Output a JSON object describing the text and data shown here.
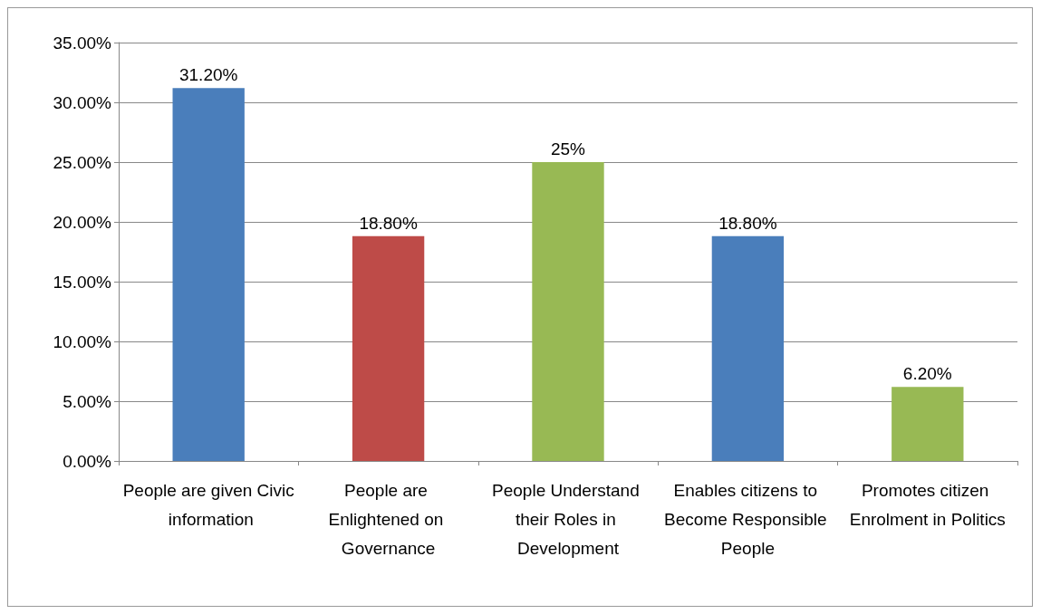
{
  "chart_data": {
    "type": "bar",
    "categories": [
      "People are given Civic information",
      "People are Enlightened on Governance",
      "People Understand their Roles in Development",
      "Enables citizens to Become Responsible People",
      "Promotes citizen Enrolment in Politics"
    ],
    "values": [
      31.2,
      18.8,
      25,
      18.8,
      6.2
    ],
    "colors": [
      "#4a7ebb",
      "#be4b48",
      "#98b954",
      "#4a7ebb",
      "#98b954"
    ],
    "value_labels": [
      "31.20%",
      "18.80%",
      "25%",
      "18.80%",
      "6.20%"
    ],
    "ylim": [
      0,
      35
    ],
    "yticks": [
      {
        "value": 0,
        "label": "0.00%"
      },
      {
        "value": 5,
        "label": "5.00%"
      },
      {
        "value": 10,
        "label": "10.00%"
      },
      {
        "value": 15,
        "label": "15.00%"
      },
      {
        "value": 20,
        "label": "20.00%"
      },
      {
        "value": 25,
        "label": "25.00%"
      },
      {
        "value": 30,
        "label": "30.00%"
      },
      {
        "value": 35,
        "label": "35.00%"
      }
    ],
    "grid": "y"
  }
}
